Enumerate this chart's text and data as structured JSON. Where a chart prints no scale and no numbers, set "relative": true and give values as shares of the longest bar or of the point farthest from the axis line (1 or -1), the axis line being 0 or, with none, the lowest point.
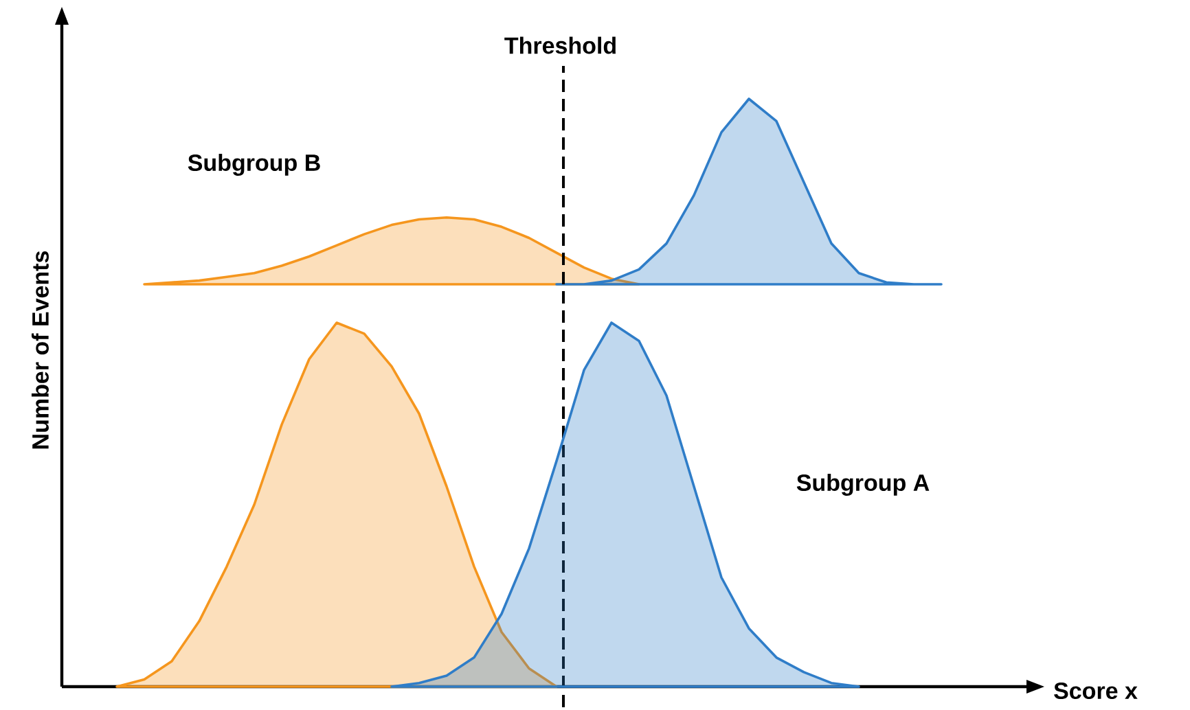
{
  "chart_data": [
    {
      "type": "area",
      "relative": true,
      "tick_labels": false,
      "categories": [
        null,
        null,
        null,
        null,
        null,
        null,
        null,
        null,
        null,
        null,
        null,
        null,
        null,
        null,
        null,
        null,
        null,
        null,
        null,
        null,
        null,
        null,
        null,
        null,
        null,
        null,
        null,
        null,
        null,
        null,
        null
      ],
      "series": [
        {
          "color": "#f5961e",
          "values": [
            null,
            0,
            0.01,
            0.02,
            0.04,
            0.06,
            0.1,
            0.15,
            0.21,
            0.27,
            0.32,
            0.35,
            0.36,
            0.35,
            0.31,
            0.25,
            0.17,
            0.09,
            0.03,
            0,
            null,
            null,
            null,
            null,
            null,
            null,
            null,
            null,
            null,
            null,
            null
          ]
        },
        {
          "color": "#2f7dc8",
          "values": [
            null,
            null,
            null,
            null,
            null,
            null,
            null,
            null,
            null,
            null,
            null,
            null,
            null,
            null,
            null,
            null,
            0,
            0,
            0.02,
            0.08,
            0.22,
            0.48,
            0.82,
            1.0,
            0.88,
            0.55,
            0.22,
            0.06,
            0.01,
            0,
            0
          ]
        }
      ],
      "annotations": [
        "Subgroup B",
        "Threshold"
      ]
    },
    {
      "type": "area",
      "relative": true,
      "tick_labels": false,
      "xlabel": "Score x",
      "ylabel": "Number of Events",
      "categories": [
        null,
        null,
        null,
        null,
        null,
        null,
        null,
        null,
        null,
        null,
        null,
        null,
        null,
        null,
        null,
        null,
        null,
        null,
        null,
        null,
        null,
        null,
        null,
        null,
        null,
        null,
        null,
        null,
        null,
        null,
        null
      ],
      "series": [
        {
          "color": "#f5961e",
          "values": [
            0,
            0.02,
            0.07,
            0.18,
            0.33,
            0.5,
            0.72,
            0.9,
            1.0,
            0.97,
            0.88,
            0.75,
            0.55,
            0.33,
            0.15,
            0.05,
            0,
            null,
            null,
            null,
            null,
            null,
            null,
            null,
            null,
            null,
            null,
            null,
            null,
            null,
            null
          ]
        },
        {
          "color": "#2f7dc8",
          "values": [
            null,
            null,
            null,
            null,
            null,
            null,
            null,
            null,
            null,
            null,
            0,
            0.01,
            0.03,
            0.08,
            0.2,
            0.38,
            0.62,
            0.87,
            1.0,
            0.95,
            0.8,
            0.55,
            0.3,
            0.16,
            0.08,
            0.04,
            0.01,
            0,
            null,
            null,
            null
          ]
        }
      ],
      "annotations": [
        "Subgroup A"
      ]
    }
  ]
}
